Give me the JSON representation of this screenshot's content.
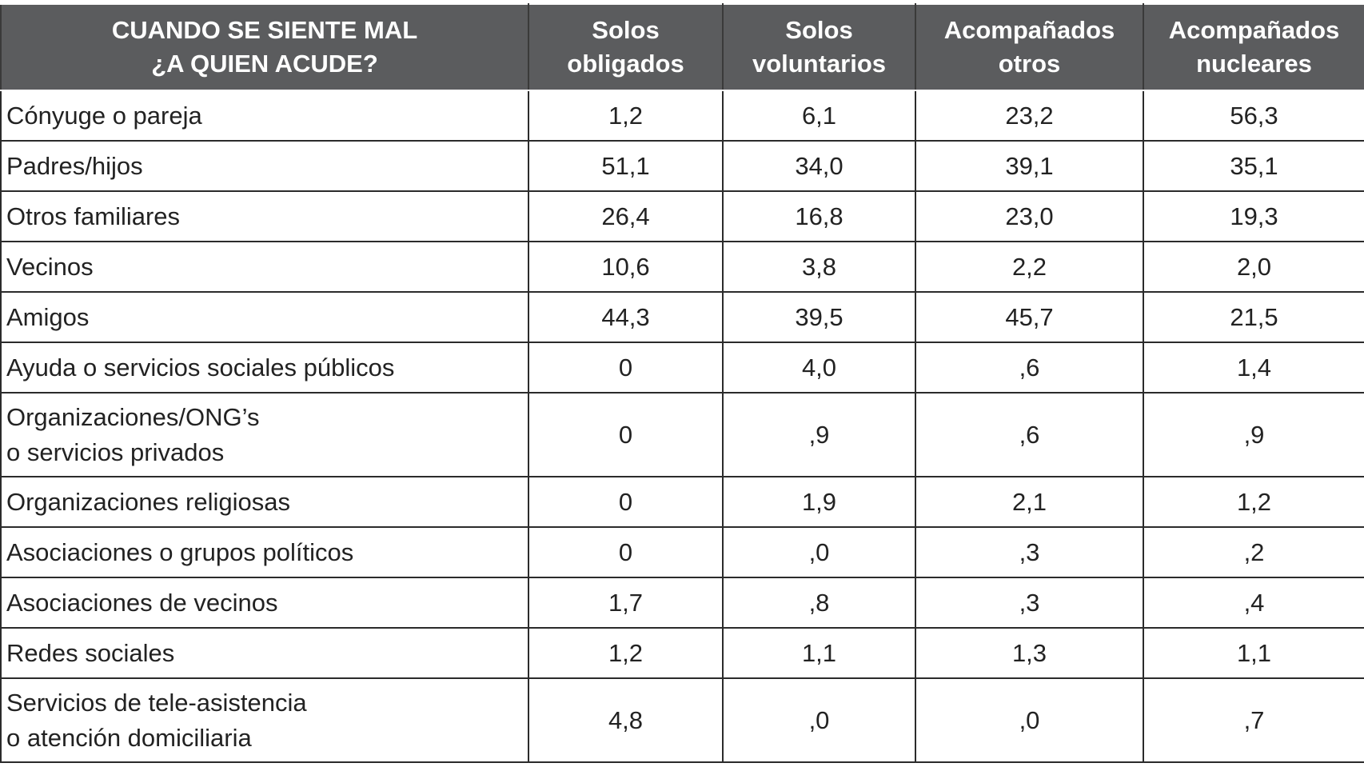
{
  "table": {
    "columns": [
      [
        "CUANDO SE SIENTE MAL",
        "¿A QUIEN ACUDE?"
      ],
      [
        "Solos",
        "obligados"
      ],
      [
        "Solos",
        "voluntarios"
      ],
      [
        "Acompañados",
        "otros"
      ],
      [
        "Acompañados",
        "nucleares"
      ]
    ],
    "rows": [
      {
        "label": [
          "Cónyuge o pareja"
        ],
        "values": [
          "1,2",
          "6,1",
          "23,2",
          "56,3"
        ]
      },
      {
        "label": [
          "Padres/hijos"
        ],
        "values": [
          "51,1",
          "34,0",
          "39,1",
          "35,1"
        ]
      },
      {
        "label": [
          "Otros familiares"
        ],
        "values": [
          "26,4",
          "16,8",
          "23,0",
          "19,3"
        ]
      },
      {
        "label": [
          "Vecinos"
        ],
        "values": [
          "10,6",
          "3,8",
          "2,2",
          "2,0"
        ]
      },
      {
        "label": [
          "Amigos"
        ],
        "values": [
          "44,3",
          "39,5",
          "45,7",
          "21,5"
        ]
      },
      {
        "label": [
          "Ayuda o servicios sociales públicos"
        ],
        "values": [
          "0",
          "4,0",
          ",6",
          "1,4"
        ]
      },
      {
        "label": [
          "Organizaciones/ONG’s",
          "o servicios privados"
        ],
        "values": [
          "0",
          ",9",
          ",6",
          ",9"
        ]
      },
      {
        "label": [
          "Organizaciones religiosas"
        ],
        "values": [
          "0",
          "1,9",
          "2,1",
          "1,2"
        ]
      },
      {
        "label": [
          "Asociaciones o grupos políticos"
        ],
        "values": [
          "0",
          ",0",
          ",3",
          ",2"
        ]
      },
      {
        "label": [
          "Asociaciones de vecinos"
        ],
        "values": [
          "1,7",
          ",8",
          ",3",
          ",4"
        ]
      },
      {
        "label": [
          "Redes sociales"
        ],
        "values": [
          "1,2",
          "1,1",
          "1,3",
          "1,1"
        ]
      },
      {
        "label": [
          "Servicios de tele-asistencia",
          "o atención domiciliaria"
        ],
        "values": [
          "4,8",
          ",0",
          ",0",
          ",7"
        ]
      }
    ]
  }
}
